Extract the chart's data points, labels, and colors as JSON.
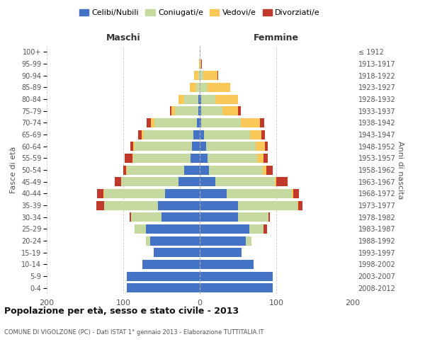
{
  "age_groups": [
    "0-4",
    "5-9",
    "10-14",
    "15-19",
    "20-24",
    "25-29",
    "30-34",
    "35-39",
    "40-44",
    "45-49",
    "50-54",
    "55-59",
    "60-64",
    "65-69",
    "70-74",
    "75-79",
    "80-84",
    "85-89",
    "90-94",
    "95-99",
    "100+"
  ],
  "birth_years": [
    "2008-2012",
    "2003-2007",
    "1998-2002",
    "1993-1997",
    "1988-1992",
    "1983-1987",
    "1978-1982",
    "1973-1977",
    "1968-1972",
    "1963-1967",
    "1958-1962",
    "1953-1957",
    "1948-1952",
    "1943-1947",
    "1938-1942",
    "1933-1937",
    "1928-1932",
    "1923-1927",
    "1918-1922",
    "1913-1917",
    "≤ 1912"
  ],
  "male": {
    "celibi": [
      95,
      95,
      75,
      60,
      65,
      70,
      50,
      55,
      45,
      28,
      20,
      12,
      10,
      8,
      4,
      2,
      2,
      0,
      0,
      0,
      0
    ],
    "coniugati": [
      0,
      0,
      0,
      0,
      5,
      15,
      40,
      70,
      80,
      75,
      75,
      75,
      75,
      65,
      55,
      30,
      18,
      5,
      2,
      0,
      0
    ],
    "vedovi": [
      0,
      0,
      0,
      0,
      0,
      0,
      0,
      0,
      1,
      0,
      1,
      1,
      2,
      3,
      5,
      5,
      8,
      8,
      5,
      1,
      0
    ],
    "divorziati": [
      0,
      0,
      0,
      0,
      0,
      0,
      2,
      10,
      8,
      8,
      4,
      10,
      4,
      5,
      5,
      2,
      0,
      0,
      0,
      0,
      0
    ]
  },
  "female": {
    "nubili": [
      95,
      95,
      70,
      55,
      60,
      65,
      50,
      50,
      35,
      20,
      12,
      10,
      8,
      6,
      2,
      2,
      2,
      0,
      0,
      0,
      0
    ],
    "coniugate": [
      0,
      0,
      0,
      0,
      8,
      18,
      40,
      78,
      85,
      78,
      70,
      65,
      65,
      60,
      52,
      28,
      18,
      10,
      5,
      0,
      0
    ],
    "vedove": [
      0,
      0,
      0,
      0,
      0,
      0,
      0,
      1,
      2,
      2,
      5,
      8,
      12,
      15,
      25,
      20,
      30,
      30,
      18,
      2,
      0
    ],
    "divorziate": [
      0,
      0,
      0,
      0,
      0,
      5,
      2,
      5,
      8,
      15,
      8,
      6,
      4,
      4,
      5,
      4,
      0,
      0,
      1,
      1,
      0
    ]
  },
  "colors": {
    "celibi": "#4472c4",
    "coniugati": "#c5d9a0",
    "vedovi": "#fac858",
    "divorziati": "#c0392b"
  },
  "xlim": 200,
  "title": "Popolazione per età, sesso e stato civile - 2013",
  "subtitle": "COMUNE DI VIGOLZONE (PC) - Dati ISTAT 1° gennaio 2013 - Elaborazione TUTTITALIA.IT",
  "ylabel_left": "Fasce di età",
  "ylabel_right": "Anni di nascita",
  "xlabel_left": "Maschi",
  "xlabel_right": "Femmine",
  "background_color": "#ffffff",
  "grid_color": "#cccccc"
}
